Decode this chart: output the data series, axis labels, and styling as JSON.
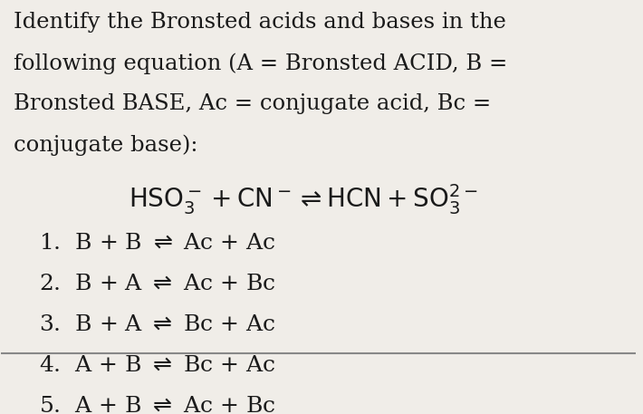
{
  "bg_color": "#f0ede8",
  "text_color": "#1a1a1a",
  "title_lines": [
    "Identify the Bronsted acids and bases in the",
    "following equation (A = Bronsted ACID, B =",
    "Bronsted BASE, Ac = conjugate acid, Bc =",
    "conjugate base):"
  ],
  "choices": [
    "1.  B + B ⇌ Ac + Ac",
    "2.  B + A ⇌ Ac + Bc",
    "3.  B + A ⇌ Bc + Ac",
    "4.  A + B ⇌ Bc + Ac",
    "5.  A + B ⇌ Ac + Bc"
  ],
  "title_fontsize": 17.5,
  "equation_fontsize": 20,
  "choice_fontsize": 18,
  "bottom_line_color": "#888888"
}
